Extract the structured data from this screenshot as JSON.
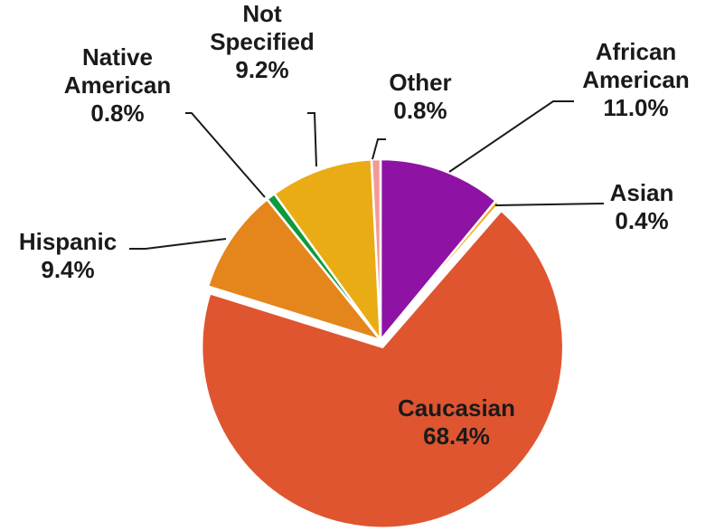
{
  "chart_data": {
    "type": "pie",
    "slices": [
      {
        "label": "African American",
        "value": 11.0,
        "display": "11.0%",
        "color": "#8e13a4",
        "exploded": false
      },
      {
        "label": "Asian",
        "value": 0.4,
        "display": "0.4%",
        "color": "#e9ac14",
        "exploded": false
      },
      {
        "label": "Caucasian",
        "value": 68.4,
        "display": "68.4%",
        "color": "#df5530",
        "exploded": true
      },
      {
        "label": "Hispanic",
        "value": 9.4,
        "display": "9.4%",
        "color": "#e4861c",
        "exploded": false
      },
      {
        "label": "Native American",
        "value": 0.8,
        "display": "0.8%",
        "color": "#0f9a3b",
        "exploded": false
      },
      {
        "label": "Not Specified",
        "value": 9.2,
        "display": "9.2%",
        "color": "#e9ac14",
        "exploded": false
      },
      {
        "label": "Other",
        "value": 0.8,
        "display": "0.8%",
        "color": "#f49a96",
        "exploded": false
      }
    ],
    "labels": {
      "african_american": {
        "line1": "African",
        "line2": "American",
        "value": "11.0%"
      },
      "asian": {
        "line1": "Asian",
        "value": "0.4%"
      },
      "caucasian": {
        "line1": "Caucasian",
        "value": "68.4%"
      },
      "hispanic": {
        "line1": "Hispanic",
        "value": "9.4%"
      },
      "native_american": {
        "line1": "Native",
        "line2": "American",
        "value": "0.8%"
      },
      "not_specified": {
        "line1": "Not",
        "line2": "Specified",
        "value": "9.2%"
      },
      "other": {
        "line1": "Other",
        "value": "0.8%"
      }
    },
    "start_angle_deg": 0,
    "direction": "clockwise",
    "legend": "none"
  }
}
